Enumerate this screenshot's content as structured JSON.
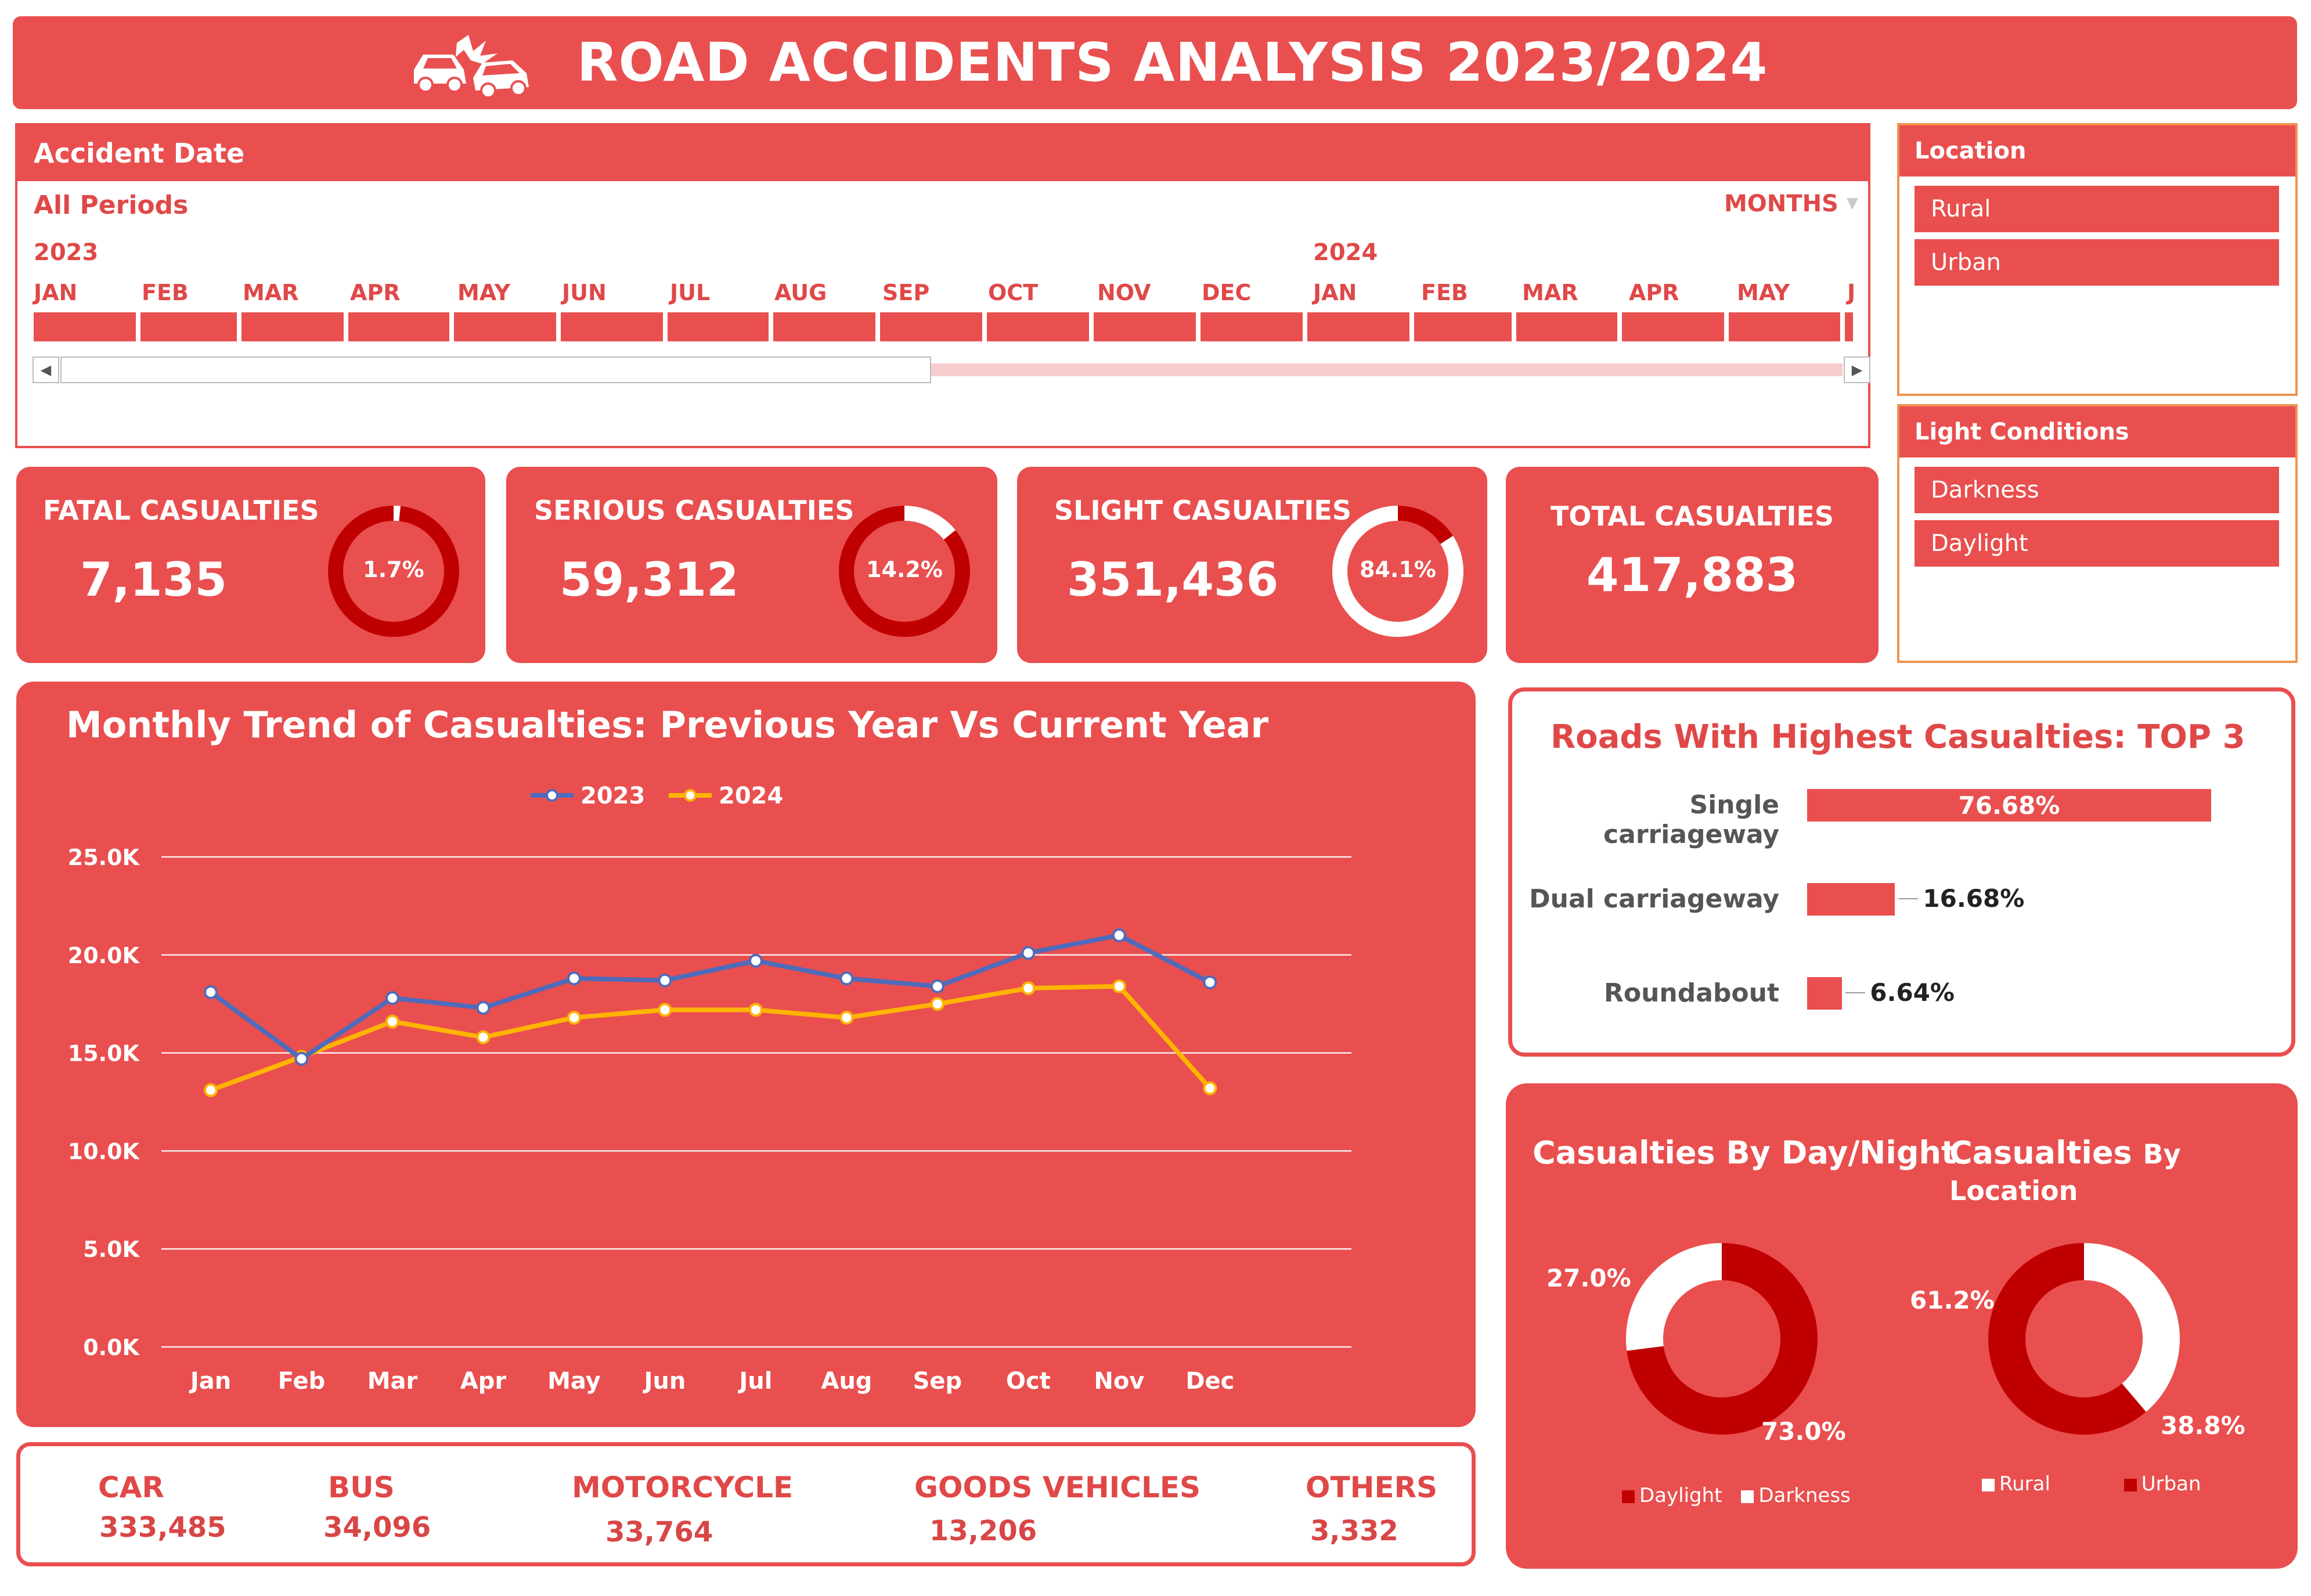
{
  "header": {
    "title": "ROAD ACCIDENTS ANALYSIS 2023/2024",
    "logo_icon": "car-crash-icon"
  },
  "timeline": {
    "title": "Accident Date",
    "period": "All Periods",
    "level": "MONTHS",
    "years": [
      "2023",
      "2024"
    ],
    "months": [
      "JAN",
      "FEB",
      "MAR",
      "APR",
      "MAY",
      "JUN",
      "JUL",
      "AUG",
      "SEP",
      "OCT",
      "NOV",
      "DEC",
      "JAN",
      "FEB",
      "MAR",
      "APR",
      "MAY",
      "J"
    ]
  },
  "location_slicer": {
    "title": "Location",
    "items": [
      "Rural",
      "Urban"
    ]
  },
  "light_slicer": {
    "title": "Light Conditions",
    "items": [
      "Darkness",
      "Daylight"
    ]
  },
  "kpis": {
    "fatal": {
      "label": "FATAL CASUALTIES",
      "value": "7,135",
      "pct_label": "1.7%",
      "pct": 1.7
    },
    "serious": {
      "label": "SERIOUS CASUALTIES",
      "value": "59,312",
      "pct_label": "14.2%",
      "pct": 14.2
    },
    "slight": {
      "label": "SLIGHT CASUALTIES",
      "value": "351,436",
      "pct_label": "84.1%",
      "pct": 84.1
    },
    "total": {
      "label": "TOTAL CASUALTIES",
      "value": "417,883"
    }
  },
  "chart_data": [
    {
      "type": "line",
      "title": "Monthly Trend of Casualties: Previous Year Vs Current Year",
      "categories": [
        "Jan",
        "Feb",
        "Mar",
        "Apr",
        "May",
        "Jun",
        "Jul",
        "Aug",
        "Sep",
        "Oct",
        "Nov",
        "Dec"
      ],
      "series": [
        {
          "name": "2023",
          "color": "#4f6bbb",
          "values": [
            18100,
            14700,
            17800,
            17300,
            18800,
            18700,
            19700,
            18800,
            18400,
            20100,
            21000,
            18600
          ]
        },
        {
          "name": "2024",
          "color": "#ffb400",
          "values": [
            13100,
            14800,
            16600,
            15800,
            16800,
            17200,
            17200,
            16800,
            17500,
            18300,
            18400,
            13200
          ]
        }
      ],
      "ylim": [
        0,
        25000
      ],
      "yticks": [
        "0.0K",
        "5.0K",
        "10.0K",
        "15.0K",
        "20.0K",
        "25.0K"
      ],
      "grid": true,
      "legend": "top"
    },
    {
      "type": "bar",
      "title": "Roads With Highest Casualties: TOP 3",
      "categories": [
        "Single carriageway",
        "Dual carriageway",
        "Roundabout"
      ],
      "values": [
        76.68,
        16.68,
        6.64
      ],
      "labels": [
        "76.68%",
        "16.68%",
        "6.64%"
      ]
    },
    {
      "type": "pie",
      "title": "Casualties By Day/Night",
      "categories": [
        "Daylight",
        "Darkness"
      ],
      "values": [
        73.0,
        27.0
      ],
      "labels": [
        "73.0%",
        "27.0%"
      ],
      "colors": [
        "#c00000",
        "#ffffff"
      ],
      "legend": "bottom"
    },
    {
      "type": "pie",
      "title_main": "Casualties",
      "title_sub": "By Location",
      "categories": [
        "Rural",
        "Urban"
      ],
      "values": [
        38.8,
        61.2
      ],
      "labels": [
        "38.8%",
        "61.2%"
      ],
      "colors": [
        "#ffffff",
        "#c00000"
      ],
      "legend": "bottom"
    }
  ],
  "vehicles": [
    {
      "label": "CAR",
      "value": "333,485"
    },
    {
      "label": "BUS",
      "value": "34,096"
    },
    {
      "label": "MOTORCYCLE",
      "value": "33,764"
    },
    {
      "label": "GOODS VEHICLES",
      "value": "13,206"
    },
    {
      "label": "OTHERS",
      "value": "3,332"
    }
  ]
}
